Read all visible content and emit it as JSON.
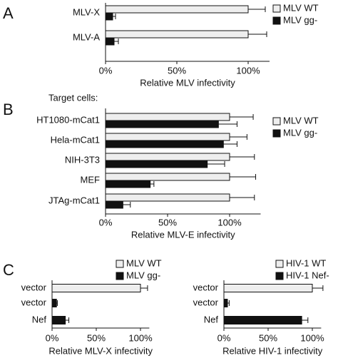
{
  "chart_data": [
    {
      "type": "hbar",
      "panel_label": "A",
      "xlabel": "Relative MLV infectivity",
      "categories": [
        "MLV-X",
        "MLV-A"
      ],
      "series": [
        {
          "name": "MLV WT",
          "color": "#eeeeee",
          "values": [
            100,
            100
          ],
          "errors": [
            12,
            13
          ]
        },
        {
          "name": "MLV gg-",
          "color": "#111111",
          "values": [
            5,
            6
          ],
          "errors": [
            2,
            3
          ]
        }
      ],
      "xlim": [
        0,
        115
      ],
      "xticks": [
        {
          "value": 0,
          "label": "0%"
        },
        {
          "value": 50,
          "label": "50%"
        },
        {
          "value": 100,
          "label": "100%"
        }
      ],
      "legend": "upper right"
    },
    {
      "type": "hbar",
      "panel_label": "B",
      "annotation": "Target cells:",
      "xlabel": "Relative MLV-E infectivity",
      "categories": [
        "HT1080-mCat1",
        "Hela-mCat1",
        "NIH-3T3",
        "MEF",
        "JTAg-mCat1"
      ],
      "series": [
        {
          "name": "MLV WT",
          "color": "#eeeeee",
          "values": [
            100,
            100,
            100,
            100,
            100
          ],
          "errors": [
            19,
            14,
            20,
            21,
            20
          ]
        },
        {
          "name": "MLV gg-",
          "color": "#111111",
          "values": [
            91,
            95,
            82,
            36,
            14
          ],
          "errors": [
            15,
            11,
            14,
            3,
            6
          ]
        }
      ],
      "xlim": [
        0,
        125
      ],
      "xticks": [
        {
          "value": 0,
          "label": "0%"
        },
        {
          "value": 50,
          "label": "50%"
        },
        {
          "value": 100,
          "label": "100%"
        }
      ],
      "legend": "upper right"
    },
    {
      "type": "hbar",
      "panel_label": "C",
      "xlabel": "Relative MLV-X infectivity",
      "categories": [
        "vector",
        "vector",
        "Nef"
      ],
      "series": [
        {
          "name": "MLV WT",
          "color": "#eeeeee",
          "values": [
            100,
            null,
            null
          ],
          "errors": [
            8,
            null,
            null
          ]
        },
        {
          "name": "MLV gg-",
          "color": "#111111",
          "values": [
            null,
            5,
            15
          ],
          "errors": [
            null,
            1,
            4
          ]
        }
      ],
      "xlim": [
        0,
        110
      ],
      "xticks": [
        {
          "value": 0,
          "label": "0%"
        },
        {
          "value": 50,
          "label": "50%"
        },
        {
          "value": 100,
          "label": "100%"
        }
      ],
      "legend": "upper right"
    },
    {
      "type": "hbar",
      "xlabel": "Relative HIV-1 infectivity",
      "categories": [
        "vector",
        "vector",
        "Nef"
      ],
      "series": [
        {
          "name": "HIV-1 WT",
          "color": "#eeeeee",
          "values": [
            100,
            null,
            null
          ],
          "errors": [
            12,
            null,
            null
          ]
        },
        {
          "name": "HIV-1 Nef-",
          "color": "#111111",
          "values": [
            null,
            4,
            88
          ],
          "errors": [
            null,
            2,
            7
          ]
        }
      ],
      "xlim": [
        0,
        110
      ],
      "xticks": [
        {
          "value": 0,
          "label": "0%"
        },
        {
          "value": 50,
          "label": "50%"
        },
        {
          "value": 100,
          "label": "100%"
        }
      ],
      "legend": "upper right"
    }
  ]
}
